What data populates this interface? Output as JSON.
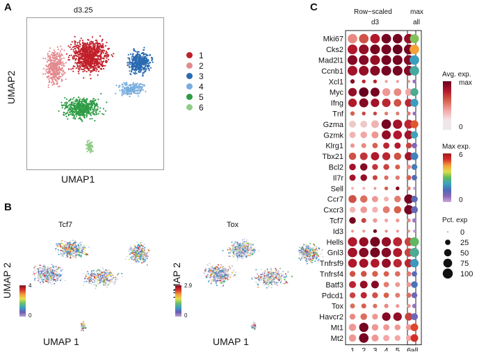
{
  "panels": {
    "a": {
      "letter": "A",
      "title": "d3.25",
      "xlabel": "UMAP1",
      "ylabel": "UMAP2",
      "legend": [
        {
          "label": "1",
          "color": "#c0202a"
        },
        {
          "label": "2",
          "color": "#e38a8f"
        },
        {
          "label": "3",
          "color": "#2a6ab1"
        },
        {
          "label": "4",
          "color": "#79aede"
        },
        {
          "label": "5",
          "color": "#2e9c45"
        },
        {
          "label": "6",
          "color": "#91cc88"
        }
      ]
    },
    "b": {
      "letter": "B",
      "plots": [
        {
          "title": "Tcf7",
          "xlabel": "UMAP 1",
          "ylabel": "UMAP 2",
          "scale_max": "4",
          "scale_min": "0"
        },
        {
          "title": "Tox",
          "xlabel": "UMAP 1",
          "ylabel": "UMAP 2",
          "scale_max": "2.9",
          "scale_min": "0"
        }
      ]
    },
    "c": {
      "letter": "C",
      "header_left_line1": "Row−scaled",
      "header_left_line2": "d3",
      "header_right_line1": "max",
      "header_right_line2": "all"
    }
  },
  "chart_data": {
    "type": "dotplot",
    "clusters": [
      "1",
      "2",
      "3",
      "4",
      "5",
      "6"
    ],
    "summary_column": "all",
    "genes": [
      "Mki67",
      "Cks2",
      "Mad2l1",
      "Ccnb1",
      "Xcl1",
      "Myc",
      "Ifng",
      "Tnf",
      "Gzma",
      "Gzmk",
      "Klrg1",
      "Tbx21",
      "Bcl2",
      "Il7r",
      "Sell",
      "Ccr7",
      "Cxcr3",
      "Tcf7",
      "Id3",
      "Hells",
      "Gnl3",
      "Tnfrsf9",
      "Tnfrsf4",
      "Batf3",
      "Pdcd1",
      "Tox",
      "Havcr2",
      "Mt1",
      "Mt2"
    ],
    "avg_exp_scaled": [
      [
        0.35,
        0.55,
        0.75,
        0.95,
        0.95,
        0.85
      ],
      [
        0.75,
        0.85,
        0.95,
        0.95,
        1.0,
        0.95
      ],
      [
        0.9,
        0.9,
        0.85,
        0.95,
        0.95,
        0.9
      ],
      [
        0.8,
        0.85,
        0.9,
        0.95,
        0.95,
        0.9
      ],
      [
        0.9,
        0.7,
        0.7,
        0.3,
        0.3,
        0.3
      ],
      [
        0.85,
        1.0,
        0.95,
        0.3,
        0.35,
        0.25
      ],
      [
        0.75,
        0.9,
        0.8,
        0.7,
        0.55,
        0.7
      ],
      [
        0.5,
        0.6,
        0.6,
        0.4,
        0.4,
        0.4
      ],
      [
        0.12,
        0.12,
        0.2,
        0.95,
        0.8,
        0.7
      ],
      [
        0.2,
        0.25,
        0.3,
        0.85,
        0.75,
        0.8
      ],
      [
        0.3,
        0.35,
        0.5,
        0.7,
        0.75,
        0.6
      ],
      [
        0.55,
        0.65,
        0.75,
        0.7,
        0.55,
        0.8
      ],
      [
        0.8,
        0.9,
        0.65,
        0.6,
        0.5,
        0.35
      ],
      [
        0.8,
        0.85,
        0.6,
        0.45,
        0.4,
        0.5
      ],
      [
        0.2,
        0.2,
        0.3,
        0.5,
        0.9,
        0.4
      ],
      [
        0.55,
        0.45,
        0.3,
        0.2,
        0.4,
        0.95
      ],
      [
        0.2,
        0.3,
        0.2,
        0.4,
        0.5,
        0.95
      ],
      [
        0.95,
        0.6,
        0.3,
        0.25,
        0.3,
        0.35
      ],
      [
        0.3,
        0.3,
        0.95,
        0.35,
        0.3,
        0.3
      ],
      [
        0.75,
        0.85,
        0.95,
        0.85,
        0.7,
        0.6
      ],
      [
        0.8,
        0.9,
        0.95,
        0.9,
        0.75,
        0.6
      ],
      [
        0.75,
        0.8,
        0.75,
        0.85,
        0.7,
        0.7
      ],
      [
        0.55,
        0.55,
        0.5,
        0.5,
        0.45,
        0.4
      ],
      [
        0.7,
        0.85,
        0.9,
        0.4,
        0.3,
        0.3
      ],
      [
        0.6,
        0.7,
        0.55,
        0.5,
        0.4,
        0.45
      ],
      [
        0.45,
        0.5,
        0.45,
        0.35,
        0.3,
        0.3
      ],
      [
        0.35,
        0.45,
        0.3,
        0.9,
        0.85,
        0.6
      ],
      [
        0.3,
        0.95,
        0.3,
        0.3,
        0.3,
        0.3
      ],
      [
        0.3,
        0.95,
        0.3,
        0.25,
        0.25,
        0.25
      ]
    ],
    "pct_exp": [
      [
        90,
        90,
        90,
        90,
        90,
        90
      ],
      [
        95,
        95,
        95,
        95,
        95,
        95
      ],
      [
        95,
        95,
        95,
        95,
        95,
        95
      ],
      [
        95,
        95,
        95,
        95,
        95,
        95
      ],
      [
        15,
        10,
        10,
        5,
        5,
        5
      ],
      [
        70,
        90,
        80,
        60,
        55,
        50
      ],
      [
        70,
        80,
        70,
        70,
        55,
        60
      ],
      [
        15,
        10,
        10,
        10,
        10,
        10
      ],
      [
        45,
        45,
        55,
        90,
        85,
        80
      ],
      [
        35,
        40,
        45,
        80,
        75,
        75
      ],
      [
        15,
        20,
        25,
        35,
        35,
        30
      ],
      [
        50,
        55,
        65,
        60,
        50,
        65
      ],
      [
        40,
        50,
        30,
        30,
        20,
        15
      ],
      [
        35,
        40,
        20,
        15,
        15,
        20
      ],
      [
        5,
        5,
        5,
        10,
        10,
        10
      ],
      [
        60,
        50,
        35,
        20,
        40,
        85
      ],
      [
        30,
        40,
        30,
        45,
        50,
        85
      ],
      [
        40,
        20,
        15,
        10,
        10,
        10
      ],
      [
        5,
        5,
        10,
        5,
        5,
        5
      ],
      [
        85,
        85,
        95,
        85,
        80,
        70
      ],
      [
        90,
        90,
        95,
        90,
        80,
        70
      ],
      [
        75,
        80,
        75,
        80,
        70,
        70
      ],
      [
        30,
        30,
        30,
        25,
        25,
        20
      ],
      [
        45,
        55,
        55,
        25,
        20,
        20
      ],
      [
        30,
        35,
        30,
        25,
        20,
        20
      ],
      [
        20,
        20,
        15,
        15,
        10,
        10
      ],
      [
        30,
        40,
        30,
        70,
        70,
        60
      ],
      [
        50,
        85,
        40,
        35,
        30,
        30
      ],
      [
        50,
        90,
        45,
        35,
        30,
        30
      ]
    ],
    "max_exp_all": [
      3.2,
      4.5,
      2.2,
      2.5,
      0.6,
      2.6,
      2.2,
      0.6,
      5.0,
      2.3,
      0.8,
      1.8,
      1.7,
      1.4,
      0.1,
      1.3,
      1.2,
      0.5,
      0.1,
      3.0,
      2.6,
      2.1,
      1.3,
      1.6,
      1.1,
      0.6,
      1.1,
      5.1,
      5.3
    ],
    "pct_exp_all": [
      80,
      90,
      90,
      90,
      10,
      60,
      60,
      10,
      60,
      50,
      25,
      55,
      30,
      25,
      5,
      40,
      45,
      15,
      5,
      80,
      85,
      70,
      25,
      40,
      30,
      15,
      45,
      55,
      55
    ]
  },
  "legends": {
    "avg_title": "Avg. exp.",
    "avg_max": "max",
    "avg_min": "0",
    "max_title": "Max exp.",
    "max_high": "6",
    "max_low": "0",
    "pct_title": "Pct. exp",
    "pct_levels": [
      "0",
      "25",
      "50",
      "75",
      "100"
    ]
  }
}
